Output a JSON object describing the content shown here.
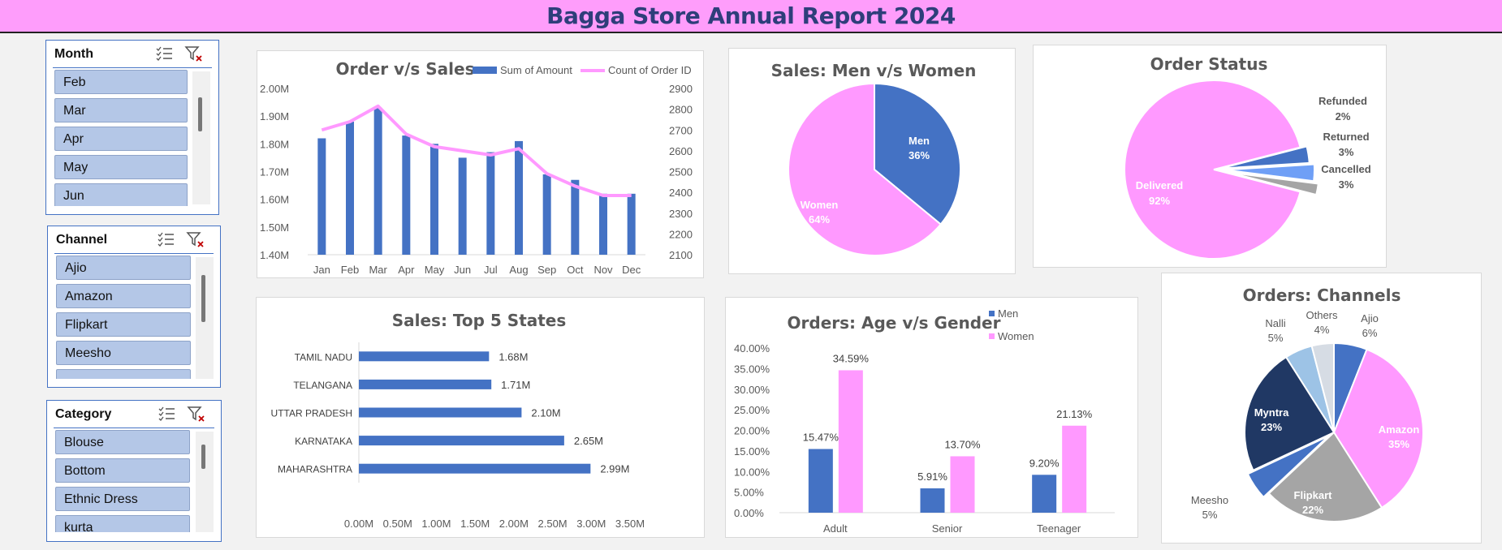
{
  "header": {
    "title": "Bagga Store Annual Report 2024"
  },
  "slicers": {
    "month": {
      "title": "Month",
      "items": [
        "Feb",
        "Mar",
        "Apr",
        "May",
        "Jun"
      ]
    },
    "channel": {
      "title": "Channel",
      "items": [
        "Ajio",
        "Amazon",
        "Flipkart",
        "Meesho",
        ""
      ]
    },
    "category": {
      "title": "Category",
      "items": [
        "Blouse",
        "Bottom",
        "Ethnic Dress",
        "kurta"
      ]
    }
  },
  "colors": {
    "blue": "#4472c4",
    "pink": "#ff99ff",
    "header_bg": "#fe9dfb",
    "title": "#2e3e7a"
  },
  "icons": [
    "multi-select-icon",
    "clear-filter-icon"
  ],
  "chart_data": [
    {
      "id": "order_sales",
      "type": "bar+line",
      "title": "Order v/s Sales",
      "categories": [
        "Jan",
        "Feb",
        "Mar",
        "Apr",
        "May",
        "Jun",
        "Jul",
        "Aug",
        "Sep",
        "Oct",
        "Nov",
        "Dec"
      ],
      "series": [
        {
          "name": "Sum of Amount",
          "type": "bar",
          "axis": "left",
          "values": [
            1.82,
            1.88,
            1.93,
            1.83,
            1.8,
            1.75,
            1.77,
            1.81,
            1.69,
            1.67,
            1.62,
            1.62
          ]
        },
        {
          "name": "Count of Order ID",
          "type": "line",
          "axis": "right",
          "values": [
            2700,
            2740,
            2815,
            2680,
            2620,
            2600,
            2580,
            2610,
            2490,
            2430,
            2385,
            2385
          ]
        }
      ],
      "yleft_ticks": [
        "2.00M",
        "1.90M",
        "1.80M",
        "1.70M",
        "1.60M",
        "1.50M",
        "1.40M"
      ],
      "ylim_left": [
        1.4,
        2.0
      ],
      "yright_ticks": [
        "2900",
        "2800",
        "2700",
        "2600",
        "2500",
        "2400",
        "2300",
        "2200",
        "2100"
      ],
      "ylim_right": [
        2100,
        2900
      ],
      "legend": "top"
    },
    {
      "id": "men_women",
      "type": "pie",
      "title": "Sales: Men v/s Women",
      "slices": [
        {
          "name": "Men",
          "value": 36,
          "label": "36%"
        },
        {
          "name": "Women",
          "value": 64,
          "label": "64%"
        }
      ]
    },
    {
      "id": "order_status",
      "type": "pie",
      "title": "Order Status",
      "slices": [
        {
          "name": "Delivered",
          "value": 92,
          "label": "92%"
        },
        {
          "name": "Cancelled",
          "value": 3,
          "label": "3%"
        },
        {
          "name": "Returned",
          "value": 3,
          "label": "3%"
        },
        {
          "name": "Refunded",
          "value": 2,
          "label": "2%"
        }
      ]
    },
    {
      "id": "top_states",
      "type": "bar",
      "orientation": "horizontal",
      "title": "Sales: Top 5 States",
      "categories": [
        "TAMIL NADU",
        "TELANGANA",
        "UTTAR PRADESH",
        "KARNATAKA",
        "MAHARASHTRA"
      ],
      "values": [
        1.68,
        1.71,
        2.1,
        2.65,
        2.99
      ],
      "data_labels": [
        "1.68M",
        "1.71M",
        "2.10M",
        "2.65M",
        "2.99M"
      ],
      "x_ticks": [
        "0.00M",
        "0.50M",
        "1.00M",
        "1.50M",
        "2.00M",
        "2.50M",
        "3.00M",
        "3.50M"
      ],
      "xlim": [
        0,
        3.5
      ]
    },
    {
      "id": "age_gender",
      "type": "bar",
      "title": "Orders: Age v/s Gender",
      "categories": [
        "Adult",
        "Senior",
        "Teenager"
      ],
      "series": [
        {
          "name": "Men",
          "values": [
            15.47,
            5.91,
            9.2
          ],
          "labels": [
            "15.47%",
            "5.91%",
            "9.20%"
          ]
        },
        {
          "name": "Women",
          "values": [
            34.59,
            13.7,
            21.13
          ],
          "labels": [
            "34.59%",
            "13.70%",
            "21.13%"
          ]
        }
      ],
      "y_ticks": [
        "40.00%",
        "35.00%",
        "30.00%",
        "25.00%",
        "20.00%",
        "15.00%",
        "10.00%",
        "5.00%",
        "0.00%"
      ],
      "ylim": [
        0,
        40
      ],
      "legend": "top-right"
    },
    {
      "id": "channels",
      "type": "pie",
      "title": "Orders: Channels",
      "slices": [
        {
          "name": "Ajio",
          "value": 6,
          "label": "6%"
        },
        {
          "name": "Amazon",
          "value": 35,
          "label": "35%"
        },
        {
          "name": "Flipkart",
          "value": 22,
          "label": "22%"
        },
        {
          "name": "Meesho",
          "value": 5,
          "label": "5%"
        },
        {
          "name": "Myntra",
          "value": 23,
          "label": "23%"
        },
        {
          "name": "Nalli",
          "value": 5,
          "label": "5%"
        },
        {
          "name": "Others",
          "value": 4,
          "label": "4%"
        }
      ]
    }
  ]
}
